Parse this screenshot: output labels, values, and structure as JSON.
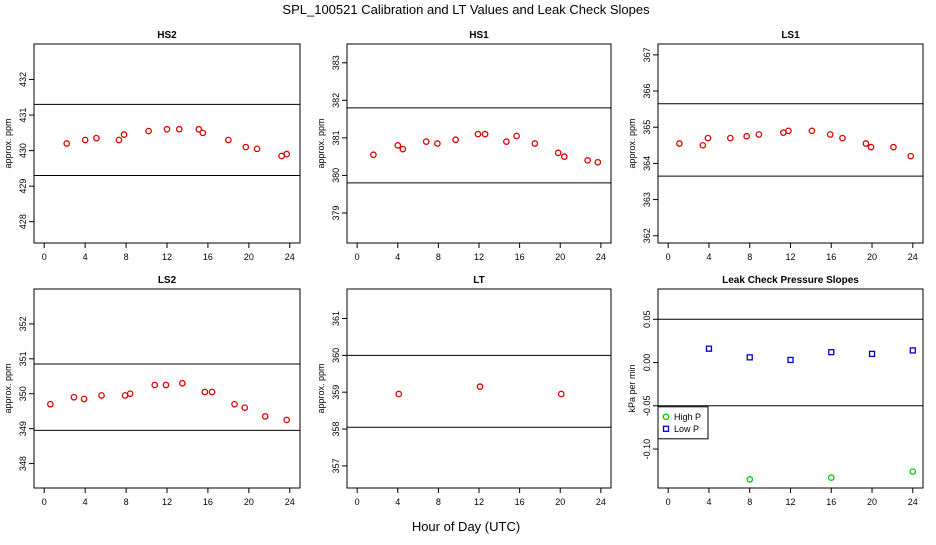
{
  "title": "SPL_100521  Calibration and LT Values and Leak Check Slopes",
  "xlabel": "Hour of Day (UTC)",
  "chart_data": [
    {
      "type": "scatter",
      "title": "HS2",
      "ylabel": "approx. ppm",
      "xlim": [
        -1,
        25
      ],
      "ylim": [
        427.4,
        433
      ],
      "xticks": [
        0,
        4,
        8,
        12,
        16,
        20,
        24
      ],
      "yticks": [
        428,
        429,
        430,
        431,
        432
      ],
      "hlines": [
        429.3,
        431.3
      ],
      "color": "#dd0000",
      "marker": "circle",
      "x": [
        2.2,
        4.0,
        5.1,
        7.3,
        7.8,
        10.2,
        12.0,
        13.2,
        15.1,
        15.5,
        18.0,
        19.7,
        20.8,
        23.2,
        23.7
      ],
      "y": [
        430.2,
        430.3,
        430.35,
        430.3,
        430.45,
        430.55,
        430.6,
        430.6,
        430.6,
        430.5,
        430.3,
        430.1,
        430.05,
        429.85,
        429.9
      ]
    },
    {
      "type": "scatter",
      "title": "HS1",
      "ylabel": "approx. ppm",
      "xlim": [
        -1,
        25
      ],
      "ylim": [
        378.2,
        383.5
      ],
      "xticks": [
        0,
        4,
        8,
        12,
        16,
        20,
        24
      ],
      "yticks": [
        379,
        380,
        381,
        382,
        383
      ],
      "hlines": [
        379.8,
        381.8
      ],
      "color": "#dd0000",
      "marker": "circle",
      "x": [
        1.6,
        4.0,
        4.5,
        6.8,
        7.9,
        9.7,
        11.9,
        12.6,
        14.7,
        15.7,
        17.5,
        19.8,
        20.4,
        22.7,
        23.7
      ],
      "y": [
        380.55,
        380.8,
        380.7,
        380.9,
        380.85,
        380.95,
        381.1,
        381.1,
        380.9,
        381.05,
        380.85,
        380.6,
        380.5,
        380.4,
        380.35
      ]
    },
    {
      "type": "scatter",
      "title": "LS1",
      "ylabel": "approx. ppm",
      "xlim": [
        -1,
        25
      ],
      "ylim": [
        361.8,
        367.3
      ],
      "xticks": [
        0,
        4,
        8,
        12,
        16,
        20,
        24
      ],
      "yticks": [
        362,
        363,
        364,
        365,
        366,
        367
      ],
      "hlines": [
        363.65,
        365.65
      ],
      "color": "#dd0000",
      "marker": "circle",
      "x": [
        1.1,
        3.4,
        3.9,
        6.1,
        7.7,
        8.9,
        11.3,
        11.8,
        14.1,
        15.9,
        17.1,
        19.4,
        19.9,
        22.1,
        23.8
      ],
      "y": [
        364.55,
        364.5,
        364.7,
        364.7,
        364.75,
        364.8,
        364.85,
        364.9,
        364.9,
        364.8,
        364.7,
        364.55,
        364.45,
        364.45,
        364.2
      ]
    },
    {
      "type": "scatter",
      "title": "LS2",
      "ylabel": "approx. ppm",
      "xlim": [
        -1,
        25
      ],
      "ylim": [
        347.3,
        353
      ],
      "xticks": [
        0,
        4,
        8,
        12,
        16,
        20,
        24
      ],
      "yticks": [
        348,
        349,
        350,
        351,
        352
      ],
      "hlines": [
        348.95,
        350.85
      ],
      "color": "#dd0000",
      "marker": "circle",
      "x": [
        0.6,
        2.9,
        3.9,
        5.6,
        7.9,
        8.4,
        10.8,
        11.9,
        13.5,
        15.7,
        16.4,
        18.6,
        19.6,
        21.6,
        23.7
      ],
      "y": [
        349.7,
        349.9,
        349.85,
        349.95,
        349.95,
        350.0,
        350.25,
        350.25,
        350.3,
        350.05,
        350.05,
        349.7,
        349.6,
        349.35,
        349.25
      ]
    },
    {
      "type": "scatter",
      "title": "LT",
      "ylabel": "approx. ppm",
      "xlim": [
        -1,
        25
      ],
      "ylim": [
        356.4,
        361.8
      ],
      "xticks": [
        0,
        4,
        8,
        12,
        16,
        20,
        24
      ],
      "yticks": [
        357,
        358,
        359,
        360,
        361
      ],
      "hlines": [
        358.05,
        360.0
      ],
      "color": "#dd0000",
      "marker": "circle",
      "x": [
        4.1,
        12.1,
        20.1
      ],
      "y": [
        358.95,
        359.15,
        358.95
      ]
    },
    {
      "type": "scatter",
      "title": "Leak Check Pressure Slopes",
      "ylabel": "kPa per min",
      "xlim": [
        -1,
        25
      ],
      "ylim": [
        -0.145,
        0.085
      ],
      "xticks": [
        0,
        4,
        8,
        12,
        16,
        20,
        24
      ],
      "yticks": [
        -0.1,
        -0.05,
        0.0,
        0.05
      ],
      "ytick_labels": [
        "-0.10",
        "-0.05",
        "0.00",
        "0.05"
      ],
      "hlines": [
        -0.05,
        0.05
      ],
      "legend_position": "left",
      "series": [
        {
          "name": "High P",
          "color": "#00cc00",
          "marker": "circle",
          "x": [
            8,
            16,
            24
          ],
          "y": [
            -0.135,
            -0.133,
            -0.126
          ]
        },
        {
          "name": "Low P",
          "color": "#0000cc",
          "marker": "square",
          "x": [
            4,
            8,
            12,
            16,
            20,
            24
          ],
          "y": [
            0.016,
            0.006,
            0.003,
            0.012,
            0.01,
            0.014
          ]
        }
      ]
    }
  ]
}
